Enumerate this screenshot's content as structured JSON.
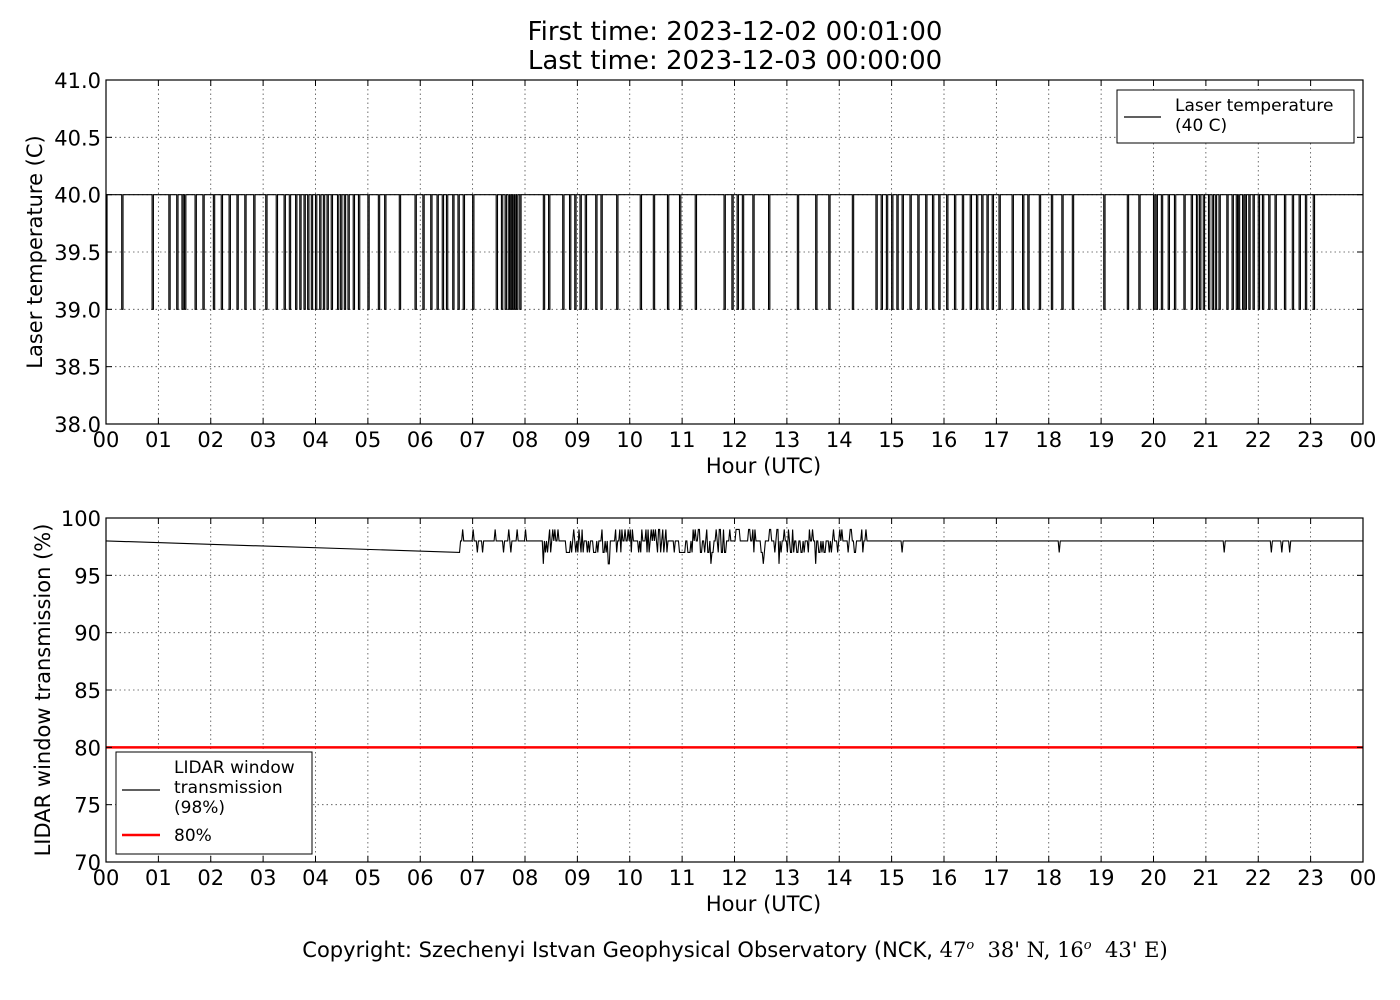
{
  "header": {
    "first_time": "First time: 2023-12-02 00:01:00",
    "last_time": "Last time: 2023-12-03 00:00:00"
  },
  "footer": {
    "copyright_prefix": "Copyright: Szechenyi Istvan Geophysical Observatory (NCK, ",
    "lat_deg": "47",
    "lat_min": "38' N, ",
    "lon_deg": "16",
    "lon_min": "43' E)"
  },
  "chart_data": [
    {
      "type": "line",
      "ylabel": "Laser temperature (C)",
      "xlabel": "Hour (UTC)",
      "xlim": [
        0,
        24
      ],
      "ylim": [
        38.0,
        41.0
      ],
      "x_ticks": [
        "00",
        "01",
        "02",
        "03",
        "04",
        "05",
        "06",
        "07",
        "08",
        "09",
        "10",
        "11",
        "12",
        "13",
        "14",
        "15",
        "16",
        "17",
        "18",
        "19",
        "20",
        "21",
        "22",
        "23",
        "00"
      ],
      "y_ticks": [
        "38.0",
        "38.5",
        "39.0",
        "39.5",
        "40.0",
        "40.5",
        "41.0"
      ],
      "grid": true,
      "legend": {
        "placement": "top-right",
        "entries": [
          {
            "label": "Laser temperature\n(40 C)",
            "color": "#000000"
          }
        ]
      },
      "series": [
        {
          "name": "Laser temperature (40 C)",
          "color": "#000000",
          "baseline": 40.0,
          "dip_value": 39.0,
          "dips_hours": [
            0.05,
            0.3,
            0.88,
            1.2,
            1.35,
            1.45,
            1.5,
            1.7,
            1.85,
            2.05,
            2.2,
            2.35,
            2.5,
            2.65,
            2.82,
            3.05,
            3.25,
            3.4,
            3.5,
            3.62,
            3.7,
            3.78,
            3.85,
            3.92,
            4.0,
            4.08,
            4.15,
            4.22,
            4.3,
            4.42,
            4.48,
            4.55,
            4.62,
            4.72,
            4.82,
            5.0,
            5.2,
            5.32,
            5.6,
            5.9,
            6.05,
            6.2,
            6.32,
            6.42,
            6.5,
            6.62,
            6.72,
            6.82,
            7.0,
            7.45,
            7.55,
            7.62,
            7.68,
            7.72,
            7.76,
            7.8,
            7.84,
            7.9,
            8.35,
            8.45,
            8.72,
            8.85,
            8.95,
            9.05,
            9.15,
            9.35,
            9.45,
            9.75,
            10.2,
            10.45,
            10.72,
            10.95,
            11.25,
            11.8,
            11.95,
            12.05,
            12.15,
            12.35,
            12.65,
            13.2,
            13.55,
            13.8,
            14.25,
            14.7,
            14.8,
            14.9,
            15.0,
            15.1,
            15.2,
            15.35,
            15.5,
            15.65,
            15.78,
            15.9,
            16.05,
            16.2,
            16.35,
            16.5,
            16.62,
            16.72,
            16.82,
            16.92,
            17.05,
            17.3,
            17.5,
            17.6,
            17.82,
            18.05,
            18.25,
            18.45,
            19.05,
            19.5,
            19.72,
            20.0,
            20.05,
            20.15,
            20.28,
            20.4,
            20.58,
            20.72,
            20.82,
            20.88,
            20.95,
            21.05,
            21.12,
            21.18,
            21.25,
            21.4,
            21.5,
            21.58,
            21.62,
            21.7,
            21.75,
            21.82,
            21.9,
            22.0,
            22.08,
            22.2,
            22.32,
            22.5,
            22.65,
            22.78,
            22.9,
            23.05
          ]
        }
      ]
    },
    {
      "type": "line",
      "ylabel": "LIDAR window transmission (%)",
      "xlabel": "Hour (UTC)",
      "xlim": [
        0,
        24
      ],
      "ylim": [
        70,
        100
      ],
      "x_ticks": [
        "00",
        "01",
        "02",
        "03",
        "04",
        "05",
        "06",
        "07",
        "08",
        "09",
        "10",
        "11",
        "12",
        "13",
        "14",
        "15",
        "16",
        "17",
        "18",
        "19",
        "20",
        "21",
        "22",
        "23",
        "00"
      ],
      "y_ticks": [
        "70",
        "75",
        "80",
        "85",
        "90",
        "95",
        "100"
      ],
      "grid": true,
      "legend": {
        "placement": "lower-left",
        "entries": [
          {
            "label": "LIDAR window\ntransmission\n(98%)",
            "color": "#000000"
          },
          {
            "label": "80%",
            "color": "#ff0000"
          }
        ]
      },
      "series": [
        {
          "name": "LIDAR window transmission (98%)",
          "color": "#000000",
          "baseline": 98,
          "noisy_range_hours": [
            6.75,
            14.55
          ],
          "noisy_values": [
            97,
            99
          ],
          "deep_dips": [
            {
              "hour": 8.35,
              "value": 96
            },
            {
              "hour": 9.6,
              "value": 96
            },
            {
              "hour": 11.55,
              "value": 96
            },
            {
              "hour": 12.55,
              "value": 96
            },
            {
              "hour": 12.85,
              "value": 96
            },
            {
              "hour": 13.55,
              "value": 96
            }
          ],
          "isolated_dips": [
            {
              "hour": 15.2,
              "value": 97
            },
            {
              "hour": 18.2,
              "value": 97
            },
            {
              "hour": 21.35,
              "value": 97
            },
            {
              "hour": 22.25,
              "value": 97
            },
            {
              "hour": 22.45,
              "value": 97
            },
            {
              "hour": 22.6,
              "value": 97
            }
          ]
        },
        {
          "name": "80%",
          "color": "#ff0000",
          "constant": 80
        }
      ]
    }
  ]
}
